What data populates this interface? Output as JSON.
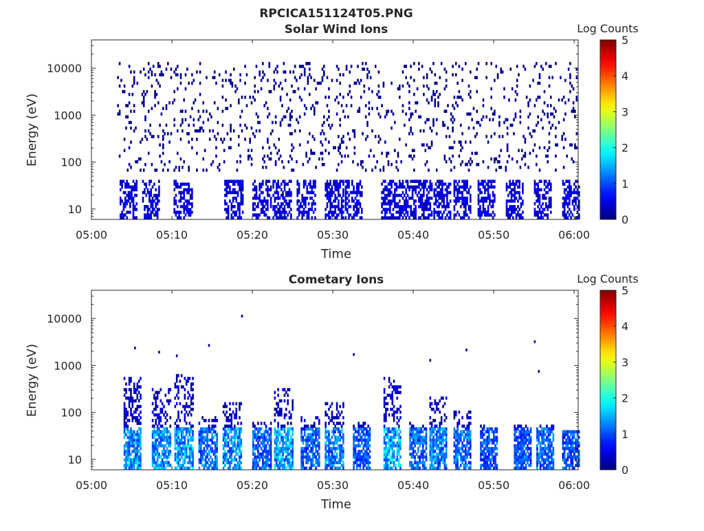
{
  "figure": {
    "title": "RPCICA151124T05.PNG"
  },
  "chart_data": [
    {
      "type": "heatmap",
      "title": "Solar Wind Ions",
      "xlabel": "Time",
      "ylabel": "Energy (eV)",
      "x_ticks": [
        "05:00",
        "05:10",
        "05:20",
        "05:30",
        "05:40",
        "05:50",
        "06:00"
      ],
      "x_range_minutes": [
        0,
        60.5
      ],
      "y_scale": "log",
      "y_ticks": [
        {
          "value": 10,
          "label": "10"
        },
        {
          "value": 100,
          "label": "100"
        },
        {
          "value": 1000,
          "label": "1000"
        },
        {
          "value": 10000,
          "label": "10000"
        }
      ],
      "y_range": [
        6,
        40000
      ],
      "colorbar": {
        "label": "Log Counts",
        "range": [
          0,
          5
        ],
        "ticks": [
          "0",
          "1",
          "2",
          "3",
          "4",
          "5"
        ],
        "colormap": "jet"
      },
      "grid": false,
      "features": [
        {
          "kind": "scatter_low",
          "description": "sparse isolated counts spanning 100 eV to 10000 eV",
          "energy_range": [
            60,
            12000
          ],
          "level": 0.2
        },
        {
          "kind": "bursts",
          "energy_range": [
            6,
            40
          ],
          "level": 0.5,
          "start_minutes": [
            3.5,
            6.3,
            10.2,
            16.5,
            20,
            22.5,
            25.5,
            29,
            31.5,
            36,
            38,
            40.2,
            42.5,
            45,
            48,
            51.5,
            55,
            58.5
          ]
        }
      ]
    },
    {
      "type": "heatmap",
      "title": "Cometary Ions",
      "xlabel": "Time",
      "ylabel": "Energy (eV)",
      "x_ticks": [
        "05:00",
        "05:10",
        "05:20",
        "05:30",
        "05:40",
        "05:50",
        "06:00"
      ],
      "x_range_minutes": [
        0,
        60.5
      ],
      "y_scale": "log",
      "y_ticks": [
        {
          "value": 10,
          "label": "10"
        },
        {
          "value": 100,
          "label": "100"
        },
        {
          "value": 1000,
          "label": "1000"
        },
        {
          "value": 10000,
          "label": "10000"
        }
      ],
      "y_range": [
        6,
        40000
      ],
      "colorbar": {
        "label": "Log Counts",
        "range": [
          0,
          5
        ],
        "ticks": [
          "0",
          "1",
          "2",
          "3",
          "4",
          "5"
        ],
        "colormap": "jet"
      },
      "grid": false,
      "bursts": [
        {
          "start_minutes": 4.0,
          "peak_energy": 500,
          "peak_level": 1.8
        },
        {
          "start_minutes": 7.5,
          "peak_energy": 300,
          "peak_level": 1.8
        },
        {
          "start_minutes": 10.3,
          "peak_energy": 600,
          "peak_level": 1.9
        },
        {
          "start_minutes": 13.3,
          "peak_energy": 80,
          "peak_level": 1.6
        },
        {
          "start_minutes": 16.3,
          "peak_energy": 150,
          "peak_level": 1.8
        },
        {
          "start_minutes": 20.0,
          "peak_energy": 60,
          "peak_level": 1.5
        },
        {
          "start_minutes": 22.7,
          "peak_energy": 300,
          "peak_level": 1.9
        },
        {
          "start_minutes": 26.0,
          "peak_energy": 80,
          "peak_level": 1.5
        },
        {
          "start_minutes": 29.0,
          "peak_energy": 150,
          "peak_level": 1.7
        },
        {
          "start_minutes": 32.5,
          "peak_energy": 60,
          "peak_level": 1.4
        },
        {
          "start_minutes": 36.3,
          "peak_energy": 500,
          "peak_level": 2.0
        },
        {
          "start_minutes": 39.5,
          "peak_energy": 60,
          "peak_level": 1.5
        },
        {
          "start_minutes": 42.0,
          "peak_energy": 200,
          "peak_level": 1.7
        },
        {
          "start_minutes": 45.0,
          "peak_energy": 100,
          "peak_level": 1.6
        },
        {
          "start_minutes": 48.3,
          "peak_energy": 50,
          "peak_level": 1.4
        },
        {
          "start_minutes": 52.5,
          "peak_energy": 50,
          "peak_level": 1.4
        },
        {
          "start_minutes": 55.3,
          "peak_energy": 50,
          "peak_level": 1.5
        },
        {
          "start_minutes": 58.5,
          "peak_energy": 40,
          "peak_level": 1.4
        }
      ],
      "sparse_points": [
        {
          "minute": 5.3,
          "energy": 2200
        },
        {
          "minute": 8.3,
          "energy": 1800
        },
        {
          "minute": 10.5,
          "energy": 1500
        },
        {
          "minute": 14.5,
          "energy": 2500
        },
        {
          "minute": 18.6,
          "energy": 10500
        },
        {
          "minute": 32.5,
          "energy": 1600
        },
        {
          "minute": 42.0,
          "energy": 1200
        },
        {
          "minute": 46.5,
          "energy": 2000
        },
        {
          "minute": 55.0,
          "energy": 3000
        },
        {
          "minute": 55.5,
          "energy": 700
        }
      ]
    }
  ]
}
